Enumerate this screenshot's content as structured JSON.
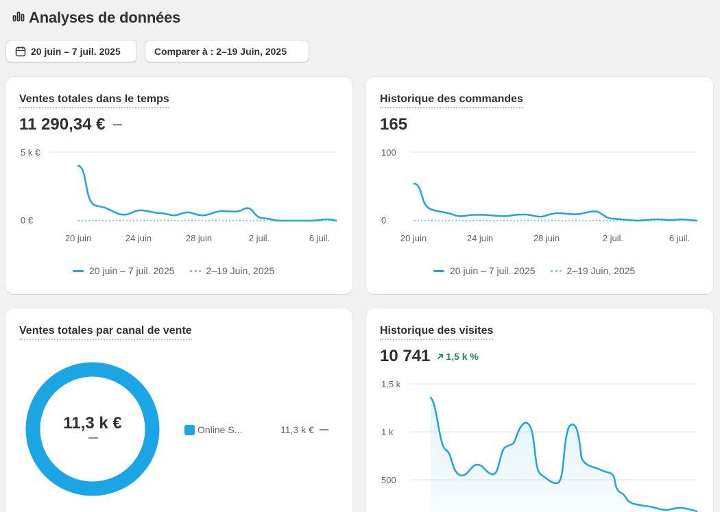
{
  "page": {
    "title": "Analyses de données",
    "date_range": "20 juin – 7 juil. 2025",
    "compare": "Comparer à : 2–19 Juin, 2025"
  },
  "cards": {
    "sales_over_time": {
      "title": "Ventes totales dans le temps",
      "value": "11 290,34 €",
      "y_labels": [
        "5 k €",
        "0 €"
      ],
      "legend_current": "20 juin – 7 juil. 2025",
      "legend_previous": "2–19 Juin, 2025"
    },
    "orders": {
      "title": "Historique des commandes",
      "value": "165",
      "y_labels": [
        "100",
        "0"
      ],
      "legend_current": "20 juin – 7 juil. 2025",
      "legend_previous": "2–19 Juin, 2025"
    },
    "sales_by_channel": {
      "title": "Ventes totales par canal de vente",
      "donut_value": "11,3 k €",
      "channel_name": "Online S...",
      "channel_value": "11,3 k €"
    },
    "visits": {
      "title": "Historique des visites",
      "value": "10 741",
      "change": "1,5 k %",
      "y_labels": [
        "1,5 k",
        "1 k",
        "500"
      ]
    }
  },
  "x_labels": [
    "20 juin",
    "24 juin",
    "28 juin",
    "2 juil.",
    "6 juil."
  ],
  "colors": {
    "series": "#1aa6e5",
    "previous": "#7fd0f0",
    "donut": "#1aa6e5",
    "positive": "#1a8a4c"
  },
  "chart_data": [
    {
      "type": "line",
      "title": "Ventes totales dans le temps",
      "x": [
        "20 juin",
        "21 juin",
        "22 juin",
        "23 juin",
        "24 juin",
        "25 juin",
        "26 juin",
        "27 juin",
        "28 juin",
        "29 juin",
        "30 juin",
        "1 juil.",
        "2 juil.",
        "3 juil.",
        "4 juil.",
        "5 juil.",
        "6 juil.",
        "7 juil."
      ],
      "series": [
        {
          "name": "20 juin – 7 juil. 2025",
          "values": [
            4000,
            1000,
            800,
            400,
            700,
            500,
            400,
            600,
            400,
            700,
            700,
            900,
            150,
            0,
            0,
            0,
            80,
            0
          ]
        },
        {
          "name": "2–19 Juin, 2025",
          "values": [
            0,
            0,
            0,
            0,
            0,
            0,
            0,
            0,
            0,
            0,
            0,
            0,
            0,
            0,
            0,
            0,
            0,
            0
          ]
        }
      ],
      "ylim": [
        0,
        5000
      ]
    },
    {
      "type": "line",
      "title": "Historique des commandes",
      "x": [
        "20 juin",
        "21 juin",
        "22 juin",
        "23 juin",
        "24 juin",
        "25 juin",
        "26 juin",
        "27 juin",
        "28 juin",
        "29 juin",
        "30 juin",
        "1 juil.",
        "2 juil.",
        "3 juil.",
        "4 juil.",
        "5 juil.",
        "6 juil.",
        "7 juil."
      ],
      "series": [
        {
          "name": "20 juin – 7 juil. 2025",
          "values": [
            54,
            15,
            12,
            7,
            10,
            9,
            7,
            10,
            6,
            11,
            9,
            14,
            3,
            0,
            2,
            0,
            1,
            0
          ]
        },
        {
          "name": "2–19 Juin, 2025",
          "values": [
            0,
            0,
            0,
            0,
            0,
            0,
            0,
            0,
            0,
            0,
            0,
            0,
            0,
            0,
            0,
            0,
            0,
            0
          ]
        }
      ],
      "ylim": [
        0,
        100
      ]
    },
    {
      "type": "pie",
      "title": "Ventes totales par canal de vente",
      "categories": [
        "Online S..."
      ],
      "values": [
        11300
      ]
    },
    {
      "type": "area",
      "title": "Historique des visites",
      "x": [
        "20 juin",
        "21 juin",
        "22 juin",
        "23 juin",
        "24 juin",
        "25 juin",
        "26 juin",
        "27 juin",
        "28 juin",
        "29 juin",
        "30 juin",
        "1 juil.",
        "2 juil.",
        "3 juil.",
        "4 juil.",
        "5 juil.",
        "6 juil.",
        "7 juil."
      ],
      "series": [
        {
          "values": [
            1330,
            820,
            550,
            670,
            560,
            860,
            1080,
            560,
            500,
            1080,
            680,
            580,
            370,
            220,
            200,
            170,
            180,
            150
          ]
        }
      ],
      "ylim": [
        0,
        1500
      ]
    }
  ]
}
